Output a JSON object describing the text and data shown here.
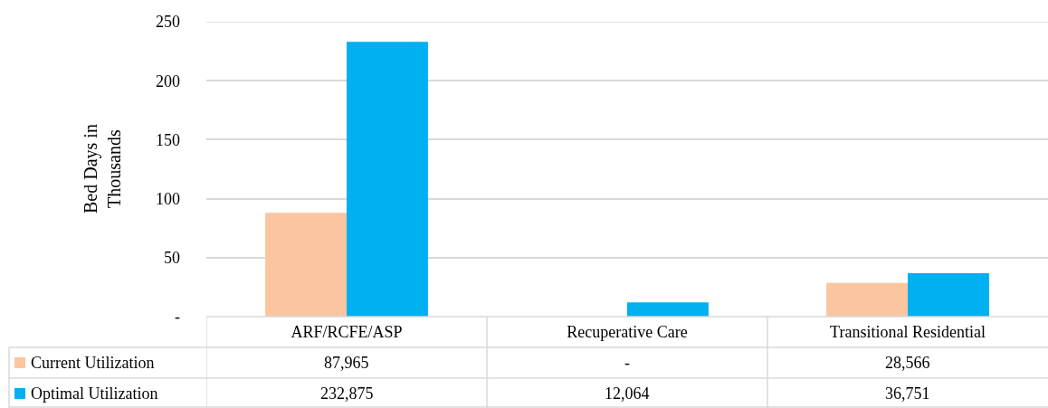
{
  "chart_data": {
    "type": "bar",
    "ylabel": "Bed Days in Thousands",
    "categories": [
      "ARF/RCFE/ASP",
      "Recuperative Care",
      "Transitional Residential"
    ],
    "series": [
      {
        "name": "Current Utilization",
        "color": "#fbc5a0",
        "values": [
          87.965,
          0,
          28.566
        ]
      },
      {
        "name": "Optimal Utilization",
        "color": "#00b0f0",
        "values": [
          232.875,
          12.064,
          36.751
        ]
      }
    ],
    "ylim": [
      0,
      250
    ],
    "yticks": [
      {
        "value": 0,
        "label": "-"
      },
      50,
      100,
      150,
      200,
      250
    ],
    "grid": "y",
    "legend": "bottom",
    "annotations": [
      "87,965",
      "-",
      "28,566",
      "232,875",
      "12,064",
      "36,751"
    ]
  }
}
